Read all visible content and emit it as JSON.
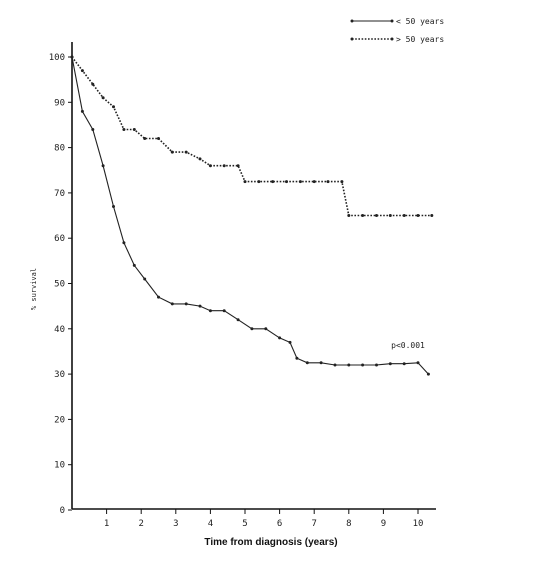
{
  "chart_data": {
    "type": "line",
    "xlabel": "Time from diagnosis (years)",
    "ylabel": "% survival",
    "xlim": [
      0,
      10.5
    ],
    "ylim": [
      -10,
      100
    ],
    "x_ticks": [
      1,
      2,
      3,
      4,
      5,
      6,
      7,
      8,
      9,
      10
    ],
    "y_ticks": [
      0,
      10,
      20,
      30,
      40,
      50,
      60,
      70,
      80,
      90,
      100
    ],
    "grid": false,
    "legend_position": "top-right",
    "annotation": "p<0.001",
    "series": [
      {
        "name": "< 50 years",
        "style": "solid",
        "color": "#222222",
        "x": [
          0,
          0.3,
          0.6,
          0.9,
          1.2,
          1.5,
          1.8,
          2.1,
          2.5,
          2.9,
          3.3,
          3.7,
          4.0,
          4.4,
          4.8,
          5.2,
          5.6,
          6.0,
          6.3,
          6.5,
          6.8,
          7.2,
          7.6,
          8.0,
          8.4,
          8.8,
          9.2,
          9.6,
          10.0,
          10.3
        ],
        "y": [
          100,
          88,
          84,
          76,
          67,
          59,
          54,
          51,
          47,
          45.5,
          45.5,
          45,
          44,
          44,
          42,
          40,
          40,
          38,
          37,
          33.5,
          32.5,
          32.5,
          32,
          32,
          32,
          32,
          32.3,
          32.3,
          32.5,
          30
        ]
      },
      {
        "name": "> 50 years",
        "style": "dotted",
        "color": "#222222",
        "x": [
          0,
          0.3,
          0.6,
          0.9,
          1.2,
          1.5,
          1.8,
          2.1,
          2.5,
          2.9,
          3.3,
          3.7,
          4.0,
          4.4,
          4.8,
          5.0,
          5.4,
          5.8,
          6.2,
          6.6,
          7.0,
          7.4,
          7.8,
          8.0,
          8.4,
          8.8,
          9.2,
          9.6,
          10.0,
          10.4
        ],
        "y": [
          100,
          97,
          94,
          91,
          89,
          84,
          84,
          82,
          82,
          79,
          79,
          77.5,
          76,
          76,
          76,
          72.5,
          72.5,
          72.5,
          72.5,
          72.5,
          72.5,
          72.5,
          72.5,
          65,
          65,
          65,
          65,
          65,
          65,
          65
        ]
      }
    ]
  }
}
